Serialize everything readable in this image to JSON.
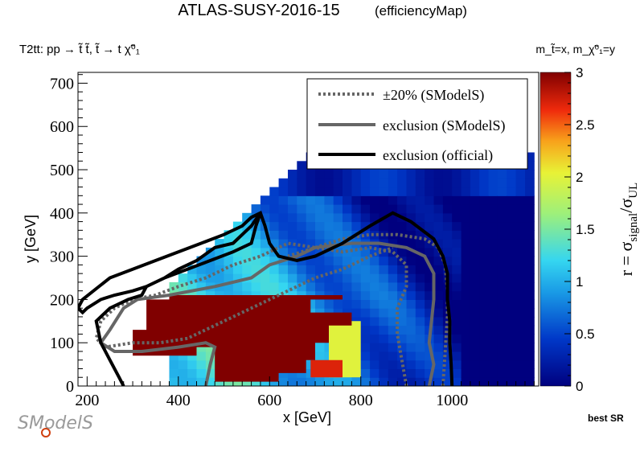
{
  "header": {
    "title": "ATLAS-SUSY-2016-15",
    "subtitle": "(efficiencyMap)",
    "process": "T2tt: pp → t̃ t̃, t̃ → t χ̃⁰₁",
    "mass_def": "m_t̃=x, m_χ̃⁰₁=y"
  },
  "footer": {
    "logo_text": "SModelS",
    "best_sr": "best SR"
  },
  "chart_data": {
    "type": "heatmap",
    "xlabel": "x [GeV]",
    "ylabel": "y [GeV]",
    "zlabel": "r = σ_signal/σ_UL",
    "xlim": [
      180,
      1190
    ],
    "ylim": [
      0,
      725
    ],
    "zlim": [
      0,
      3
    ],
    "x_ticks": [
      200,
      400,
      600,
      800,
      1000
    ],
    "y_ticks": [
      0,
      100,
      200,
      300,
      400,
      500,
      600,
      700
    ],
    "z_ticks": [
      0,
      0.5,
      1,
      1.5,
      2,
      2.5,
      3
    ],
    "colors": {
      "saturated": "#800000",
      "dotted": "#666666",
      "smodels": "#666666",
      "official": "#000000"
    },
    "legend": {
      "position": "top-right",
      "entries": [
        {
          "label": "±20% (SModelS)",
          "style": "dotted"
        },
        {
          "label": "exclusion (SModelS)",
          "style": "gray-solid"
        },
        {
          "label": "exclusion (official)",
          "style": "black-solid"
        }
      ]
    },
    "regions": [
      {
        "name": "saturated",
        "r": 3.0,
        "polygon": [
          [
            300,
            130
          ],
          [
            330,
            130
          ],
          [
            330,
            200
          ],
          [
            380,
            200
          ],
          [
            380,
            210
          ],
          [
            710,
            210
          ],
          [
            760,
            210
          ],
          [
            760,
            200
          ],
          [
            690,
            200
          ],
          [
            690,
            170
          ],
          [
            780,
            170
          ],
          [
            780,
            140
          ],
          [
            730,
            140
          ],
          [
            730,
            100
          ],
          [
            700,
            100
          ],
          [
            700,
            60
          ],
          [
            680,
            60
          ],
          [
            680,
            30
          ],
          [
            620,
            30
          ],
          [
            620,
            10
          ],
          [
            480,
            10
          ],
          [
            480,
            90
          ],
          [
            440,
            90
          ],
          [
            440,
            70
          ],
          [
            300,
            70
          ]
        ]
      },
      {
        "name": "red-orange",
        "r": 2.7,
        "polygon": [
          [
            690,
            60
          ],
          [
            760,
            60
          ],
          [
            760,
            20
          ],
          [
            690,
            20
          ]
        ]
      },
      {
        "name": "yellow",
        "r": 2.0,
        "polygon": [
          [
            730,
            150
          ],
          [
            800,
            150
          ],
          [
            800,
            20
          ],
          [
            730,
            20
          ]
        ]
      }
    ],
    "efficiency_grid": {
      "x_range": [
        380,
        1180
      ],
      "y_range": [
        0,
        540
      ],
      "r_center": 1.0
    },
    "contours": {
      "official": [
        [
          280,
          0
        ],
        [
          270,
          20
        ],
        [
          250,
          60
        ],
        [
          230,
          100
        ],
        [
          220,
          150
        ],
        [
          250,
          180
        ],
        [
          290,
          200
        ],
        [
          320,
          210
        ],
        [
          330,
          230
        ],
        [
          370,
          250
        ],
        [
          420,
          270
        ],
        [
          470,
          290
        ],
        [
          520,
          310
        ],
        [
          560,
          330
        ],
        [
          570,
          370
        ],
        [
          580,
          400
        ],
        [
          560,
          370
        ],
        [
          520,
          330
        ],
        [
          480,
          320
        ],
        [
          440,
          290
        ],
        [
          400,
          270
        ],
        [
          370,
          250
        ],
        [
          330,
          230
        ],
        [
          300,
          220
        ],
        [
          260,
          210
        ],
        [
          230,
          200
        ],
        [
          200,
          180
        ],
        [
          190,
          170
        ],
        [
          180,
          180
        ],
        [
          190,
          200
        ],
        [
          250,
          250
        ],
        [
          300,
          270
        ],
        [
          350,
          290
        ],
        [
          400,
          310
        ],
        [
          450,
          330
        ],
        [
          500,
          350
        ],
        [
          540,
          370
        ],
        [
          560,
          390
        ],
        [
          580,
          400
        ],
        [
          590,
          370
        ],
        [
          600,
          330
        ],
        [
          620,
          300
        ],
        [
          660,
          290
        ],
        [
          700,
          300
        ],
        [
          760,
          330
        ],
        [
          820,
          370
        ],
        [
          870,
          400
        ],
        [
          910,
          380
        ],
        [
          960,
          340
        ],
        [
          980,
          300
        ],
        [
          990,
          260
        ],
        [
          990,
          200
        ],
        [
          995,
          150
        ],
        [
          995,
          100
        ],
        [
          998,
          50
        ],
        [
          1000,
          0
        ]
      ],
      "smodels": [
        [
          460,
          0
        ],
        [
          470,
          50
        ],
        [
          480,
          90
        ],
        [
          460,
          100
        ],
        [
          400,
          90
        ],
        [
          320,
          80
        ],
        [
          260,
          80
        ],
        [
          230,
          100
        ],
        [
          250,
          130
        ],
        [
          280,
          180
        ],
        [
          310,
          200
        ],
        [
          380,
          210
        ],
        [
          480,
          230
        ],
        [
          560,
          250
        ],
        [
          600,
          280
        ],
        [
          660,
          300
        ],
        [
          700,
          320
        ],
        [
          780,
          330
        ],
        [
          840,
          330
        ],
        [
          900,
          320
        ],
        [
          940,
          300
        ],
        [
          960,
          260
        ],
        [
          960,
          200
        ],
        [
          955,
          150
        ],
        [
          950,
          100
        ],
        [
          960,
          50
        ],
        [
          950,
          0
        ]
      ],
      "dotted_upper": [
        [
          900,
          0
        ],
        [
          890,
          60
        ],
        [
          880,
          120
        ],
        [
          880,
          180
        ],
        [
          900,
          230
        ],
        [
          900,
          280
        ],
        [
          870,
          310
        ],
        [
          820,
          320
        ],
        [
          760,
          310
        ],
        [
          700,
          320
        ],
        [
          640,
          330
        ],
        [
          580,
          300
        ],
        [
          520,
          280
        ],
        [
          460,
          250
        ],
        [
          400,
          230
        ],
        [
          350,
          210
        ],
        [
          300,
          200
        ],
        [
          260,
          180
        ],
        [
          230,
          150
        ],
        [
          220,
          110
        ],
        [
          240,
          90
        ],
        [
          300,
          100
        ],
        [
          360,
          100
        ],
        [
          420,
          110
        ],
        [
          480,
          140
        ],
        [
          540,
          170
        ],
        [
          600,
          200
        ],
        [
          660,
          230
        ],
        [
          700,
          250
        ],
        [
          760,
          270
        ],
        [
          820,
          300
        ],
        [
          870,
          320
        ]
      ],
      "dotted_lower": [
        [
          980,
          0
        ],
        [
          985,
          80
        ],
        [
          990,
          160
        ],
        [
          990,
          220
        ],
        [
          985,
          280
        ],
        [
          970,
          320
        ],
        [
          940,
          340
        ],
        [
          880,
          350
        ],
        [
          820,
          350
        ],
        [
          760,
          340
        ],
        [
          700,
          320
        ],
        [
          640,
          300
        ]
      ]
    }
  }
}
